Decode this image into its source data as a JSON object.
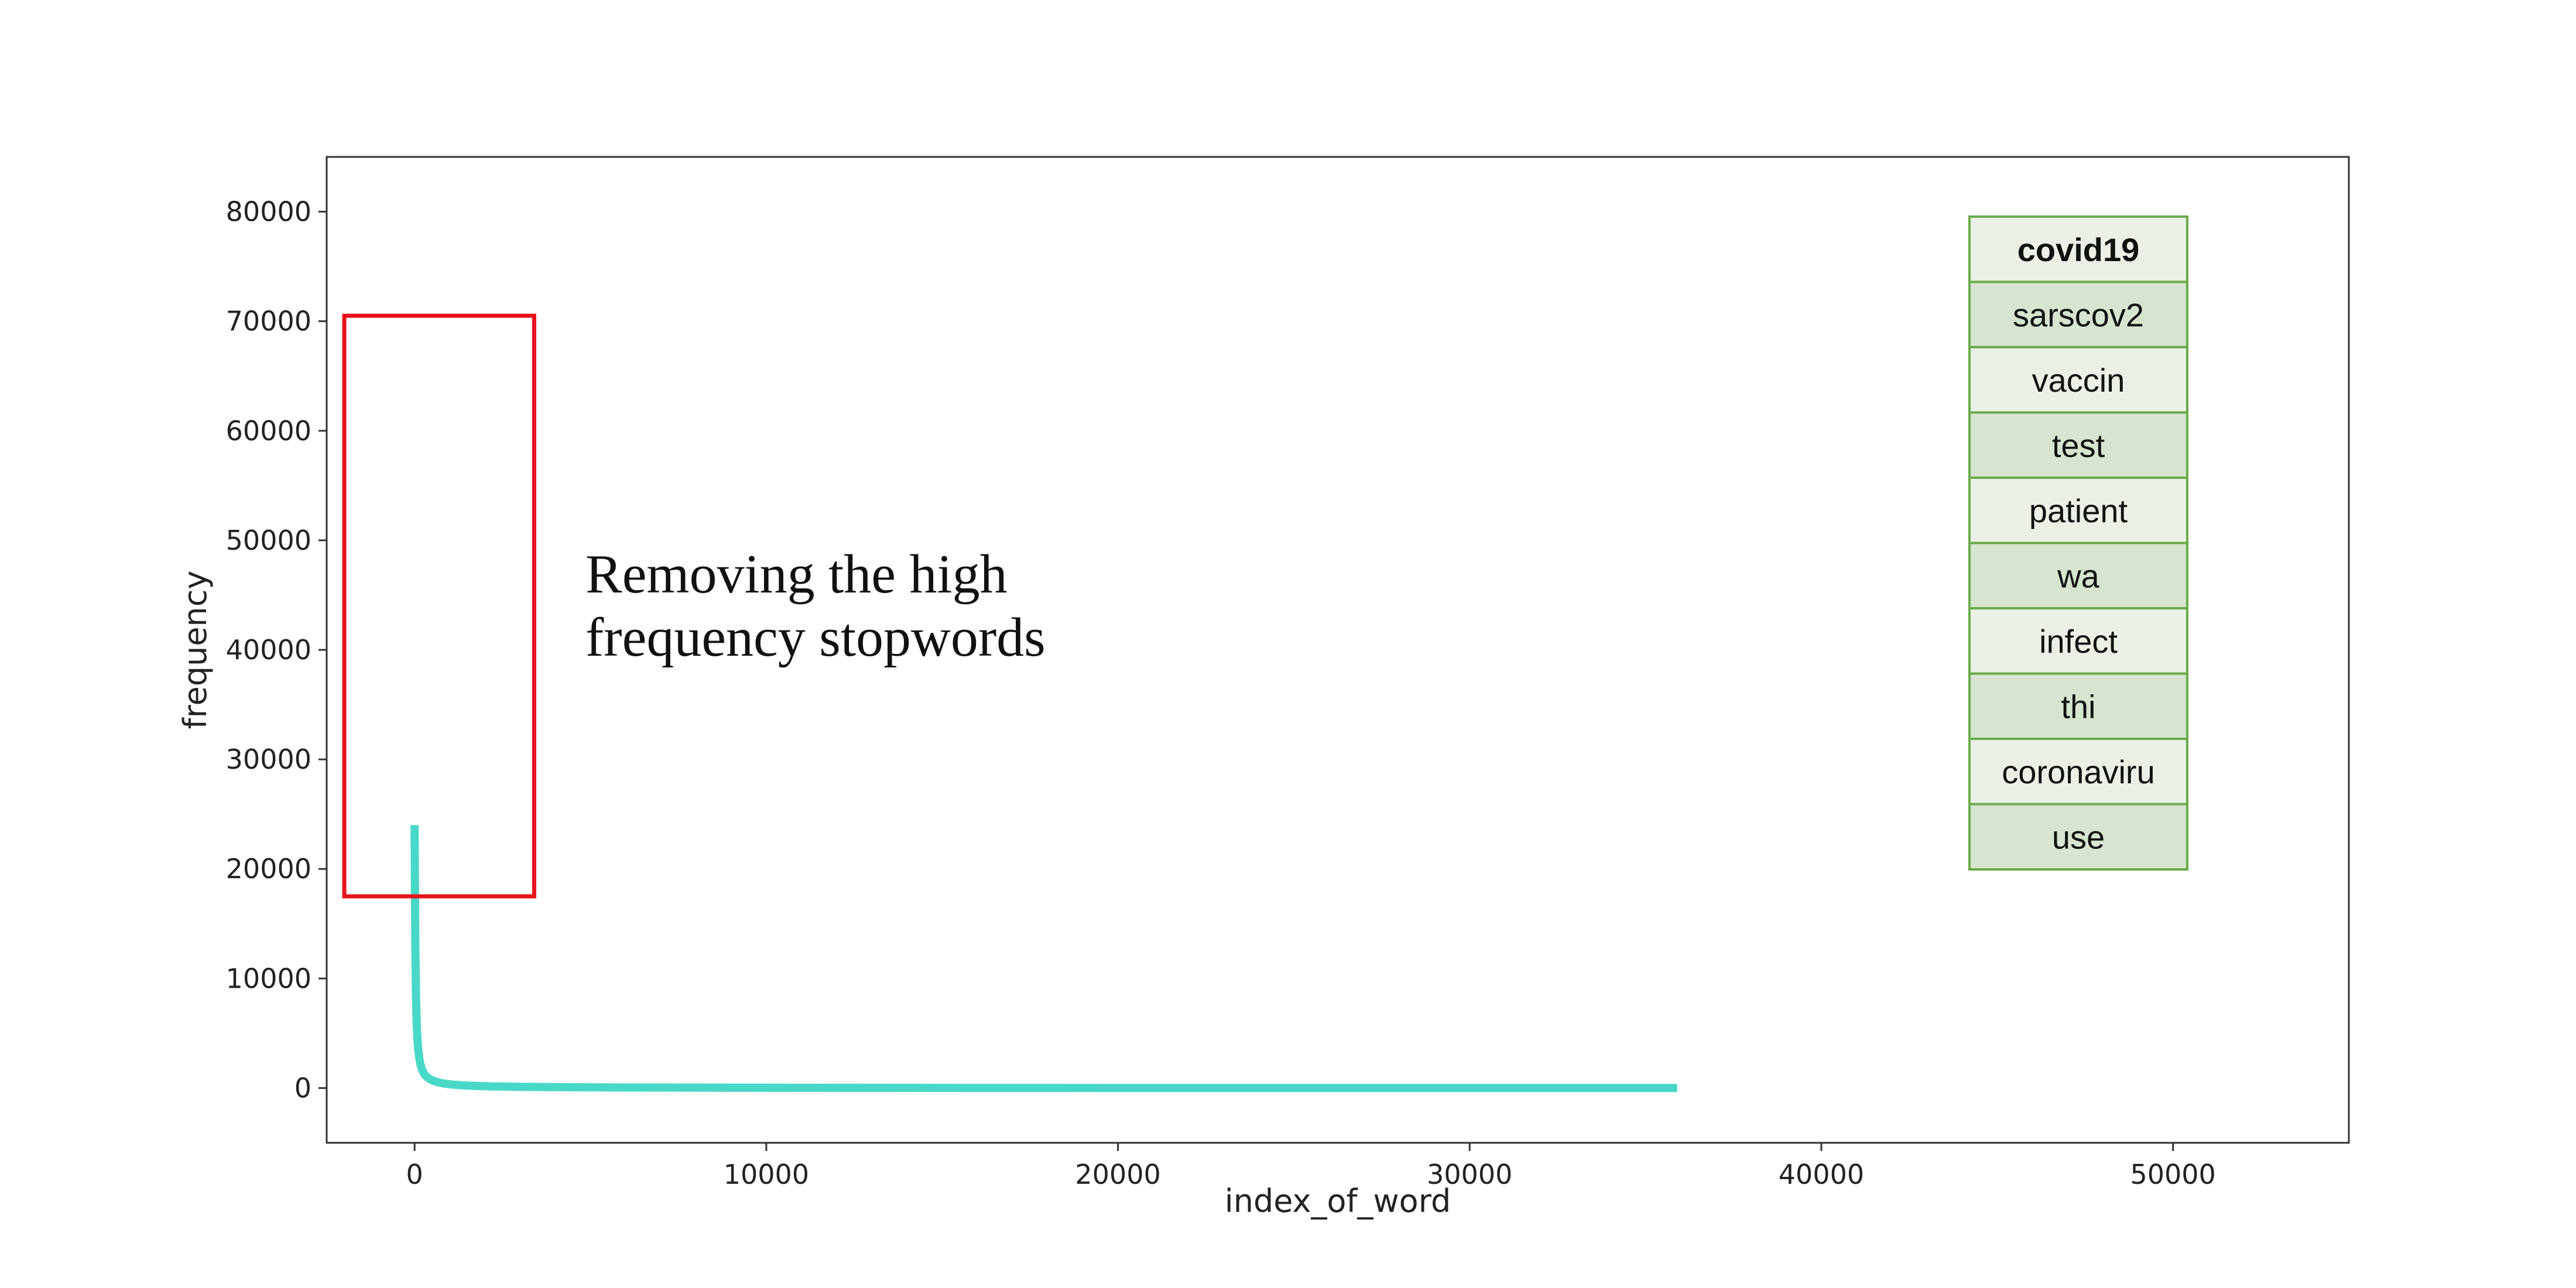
{
  "chart_data": {
    "type": "line",
    "xlabel": "index_of_word",
    "ylabel": "frequency",
    "xlim": [
      -2500,
      55000
    ],
    "ylim": [
      -5000,
      85000
    ],
    "xticks": [
      0,
      10000,
      20000,
      30000,
      40000,
      50000
    ],
    "yticks": [
      0,
      10000,
      20000,
      30000,
      40000,
      50000,
      60000,
      70000,
      80000
    ],
    "grid": false,
    "series": [
      {
        "color": "#48d8c8",
        "x": [
          0,
          10,
          20,
          40,
          60,
          80,
          100,
          130,
          170,
          220,
          280,
          350,
          450,
          600,
          800,
          1000,
          1300,
          1700,
          2200,
          3000,
          4000,
          6000,
          9000,
          13000,
          18000,
          24000,
          30000,
          35900
        ],
        "y": [
          24000,
          17500,
          13000,
          8200,
          5800,
          4500,
          3600,
          2800,
          2100,
          1600,
          1250,
          1000,
          780,
          580,
          430,
          340,
          260,
          200,
          150,
          110,
          80,
          50,
          30,
          18,
          10,
          5,
          3,
          1
        ]
      }
    ],
    "annotation": {
      "text_lines": [
        "Removing the high",
        "frequency stopwords"
      ],
      "box": {
        "x0": -2000,
        "x1": 3400,
        "y0": 17500,
        "y1": 70500,
        "color": "#e8141c"
      }
    },
    "top_words": {
      "items": [
        "covid19",
        "sarscov2",
        "vaccin",
        "test",
        "patient",
        "wa",
        "infect",
        "thi",
        "coronaviru",
        "use"
      ],
      "bold_index": 0,
      "border_color": "#6aaa48",
      "fill_light": "#eaf0e6",
      "fill_dark": "#d6e4d0"
    }
  }
}
